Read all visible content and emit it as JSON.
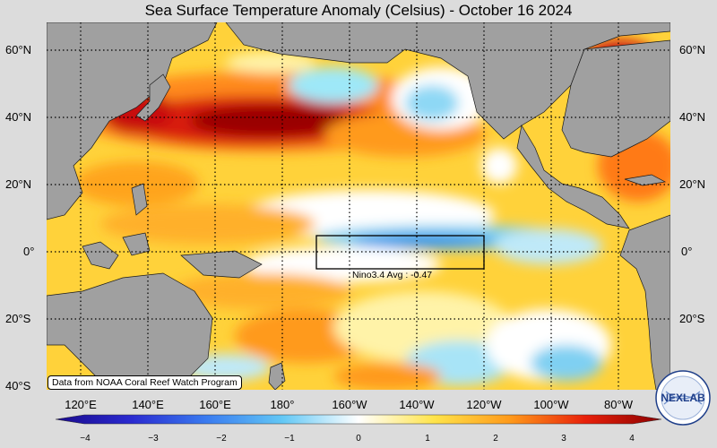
{
  "title": "Sea Surface Temperature Anomaly (Celsius) - October 16 2024",
  "credit": "Data from NOAA Coral Reef Watch Program",
  "nino_box_label": "Nino3.4 Avg : -0.47",
  "logo_text": "NEXLAB",
  "lat_labels": [
    "60°N",
    "40°N",
    "20°N",
    "0°",
    "20°S",
    "40°S"
  ],
  "lon_labels": [
    "120°E",
    "140°E",
    "160°E",
    "180°",
    "160°W",
    "140°W",
    "120°W",
    "100°W",
    "80°W"
  ],
  "colorbar": {
    "range": [
      -4,
      4
    ],
    "ticks": [
      "−4",
      "−3",
      "−2",
      "−1",
      "0",
      "1",
      "2",
      "3",
      "4"
    ],
    "colors": [
      "#1a0a8c",
      "#2a2ad0",
      "#3a7cf0",
      "#63c8f5",
      "#ffffff",
      "#ffe44a",
      "#ff9a1a",
      "#e8200a",
      "#8a0000"
    ]
  },
  "colors": {
    "land": "#9e9e9e",
    "frame_background": "#dcdcdc"
  }
}
